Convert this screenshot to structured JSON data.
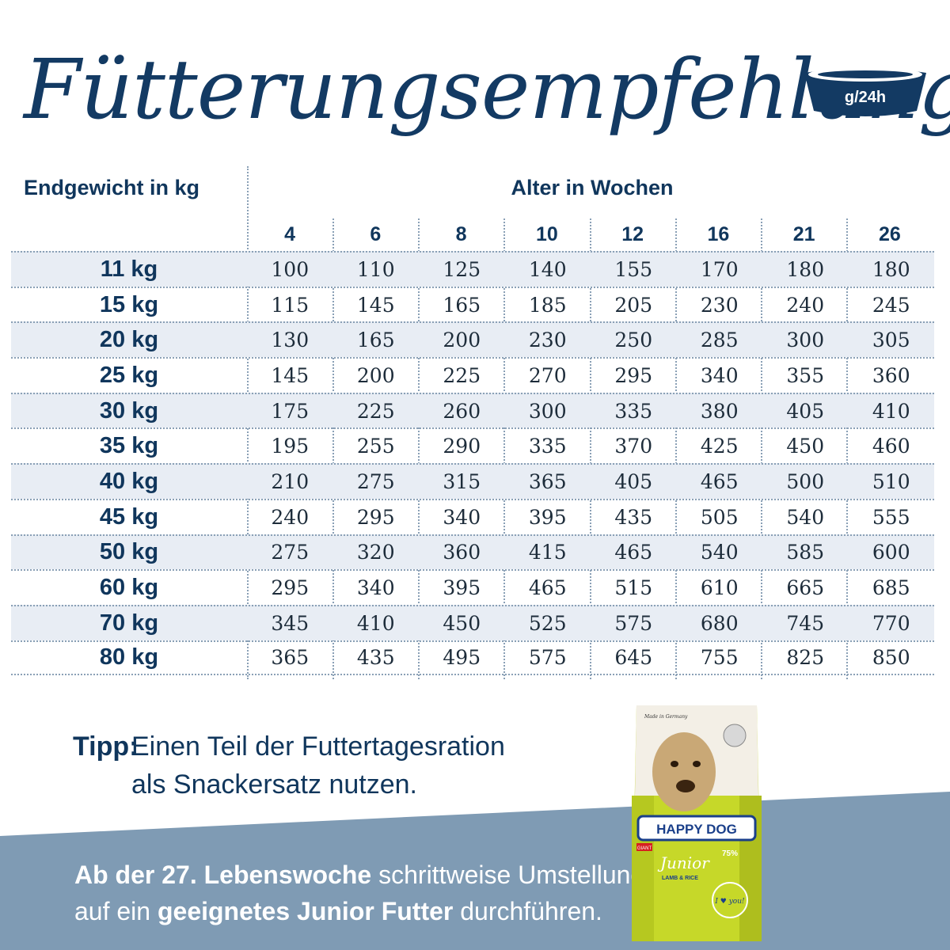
{
  "title": "Fütterungsempfehlung",
  "unit_badge": "g/24h",
  "header": {
    "weight_label": "Endgewicht in kg",
    "age_label": "Alter in Wochen",
    "weeks": [
      "4",
      "6",
      "8",
      "10",
      "12",
      "16",
      "21",
      "26"
    ]
  },
  "rows": [
    {
      "weight": "11 kg",
      "values": [
        "100",
        "110",
        "125",
        "140",
        "155",
        "170",
        "180",
        "180"
      ]
    },
    {
      "weight": "15 kg",
      "values": [
        "115",
        "145",
        "165",
        "185",
        "205",
        "230",
        "240",
        "245"
      ]
    },
    {
      "weight": "20 kg",
      "values": [
        "130",
        "165",
        "200",
        "230",
        "250",
        "285",
        "300",
        "305"
      ]
    },
    {
      "weight": "25 kg",
      "values": [
        "145",
        "200",
        "225",
        "270",
        "295",
        "340",
        "355",
        "360"
      ]
    },
    {
      "weight": "30 kg",
      "values": [
        "175",
        "225",
        "260",
        "300",
        "335",
        "380",
        "405",
        "410"
      ]
    },
    {
      "weight": "35 kg",
      "values": [
        "195",
        "255",
        "290",
        "335",
        "370",
        "425",
        "450",
        "460"
      ]
    },
    {
      "weight": "40 kg",
      "values": [
        "210",
        "275",
        "315",
        "365",
        "405",
        "465",
        "500",
        "510"
      ]
    },
    {
      "weight": "45 kg",
      "values": [
        "240",
        "295",
        "340",
        "395",
        "435",
        "505",
        "540",
        "555"
      ]
    },
    {
      "weight": "50 kg",
      "values": [
        "275",
        "320",
        "360",
        "415",
        "465",
        "540",
        "585",
        "600"
      ]
    },
    {
      "weight": "60 kg",
      "values": [
        "295",
        "340",
        "395",
        "465",
        "515",
        "610",
        "665",
        "685"
      ]
    },
    {
      "weight": "70 kg",
      "values": [
        "345",
        "410",
        "450",
        "525",
        "575",
        "680",
        "745",
        "770"
      ]
    },
    {
      "weight": "80 kg",
      "values": [
        "365",
        "435",
        "495",
        "575",
        "645",
        "755",
        "825",
        "850"
      ]
    }
  ],
  "tip": {
    "label": "Tipp:",
    "line1": "Einen Teil der Futtertagesration",
    "line2": "als Snackersatz nutzen."
  },
  "footer": {
    "bold1": "Ab der 27. Lebenswoche",
    "text1": " schrittweise Umstellung",
    "text2": "auf ein ",
    "bold2": "geeignetes Junior Futter",
    "text3": " durchführen."
  },
  "product": {
    "brand": "HAPPY DOG",
    "line": "Junior",
    "variant": "LAMB & RICE",
    "tag": "GIANT",
    "badge": "I ♥ you!",
    "percent": "75%",
    "maker": "Made in Germany"
  },
  "colors": {
    "navy": "#10365c",
    "row_shade": "#e8edf4",
    "band": "#7f9bb4",
    "bag_lime": "#c6d829"
  }
}
